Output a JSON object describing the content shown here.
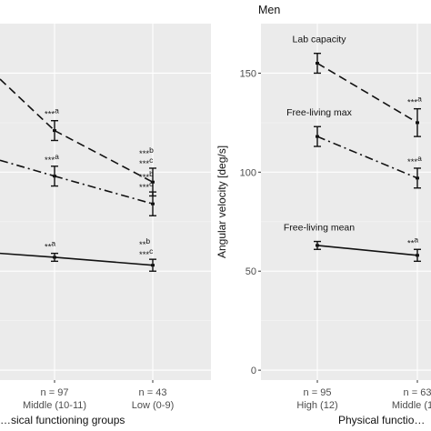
{
  "chart_data": [
    {
      "type": "line",
      "title": "",
      "xlabel": "…sical functioning groups",
      "ylabel": "",
      "categories": [
        "n = 97\nMiddle (10-11)",
        "n = 43\nLow (0-9)"
      ],
      "ylim": [
        -5,
        175
      ],
      "grid": true,
      "series": [
        {
          "name": "",
          "style": "dashed",
          "values": [
            121,
            95
          ],
          "err": [
            5,
            7
          ],
          "sig": [
            "***a",
            "***b\n***c"
          ]
        },
        {
          "name": "",
          "style": "dash-dot",
          "values": [
            98,
            84
          ],
          "err": [
            5,
            6
          ],
          "sig": [
            "***a",
            "***b\n***c"
          ]
        },
        {
          "name": "",
          "style": "solid",
          "values": [
            57,
            53
          ],
          "err": [
            2,
            3
          ],
          "sig": [
            "**a",
            "**b\n***c"
          ]
        }
      ],
      "partial_left_values": [
        147,
        106,
        59
      ]
    },
    {
      "type": "line",
      "title": "Men",
      "xlabel": "Physical functio…",
      "ylabel": "Angular velocity [deg/s]",
      "categories": [
        "n = 95\nHigh (12)",
        "n = 63\nMiddle (1…"
      ],
      "yticks": [
        0,
        50,
        100,
        150
      ],
      "ylim": [
        -5,
        175
      ],
      "grid": true,
      "series": [
        {
          "name": "Lab capacity",
          "style": "dashed",
          "values": [
            155,
            125
          ],
          "err": [
            5,
            7
          ],
          "sig": [
            "",
            "***a"
          ]
        },
        {
          "name": "Free-living max",
          "style": "dash-dot",
          "values": [
            118,
            97
          ],
          "err": [
            5,
            5
          ],
          "sig": [
            "",
            "***a"
          ]
        },
        {
          "name": "Free-living mean",
          "style": "solid",
          "values": [
            63,
            58
          ],
          "err": [
            2,
            3
          ],
          "sig": [
            "",
            "**a"
          ]
        }
      ]
    }
  ]
}
